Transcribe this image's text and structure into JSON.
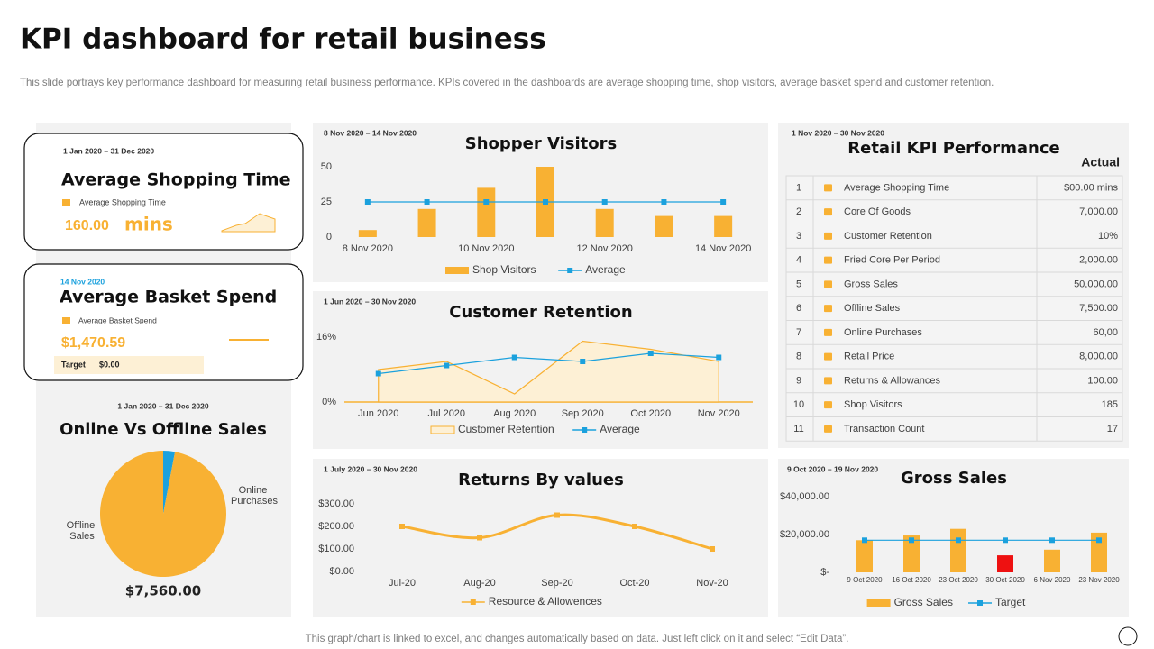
{
  "header": {
    "title": "KPI dashboard for retail business",
    "subtitle": "This slide portrays key performance dashboard for measuring retail business performance. KPIs covered in the dashboards are average shopping time, shop visitors, average basket spend and customer retention."
  },
  "cards": [
    {
      "date": "1 Jan 2020 – 31 Dec 2020",
      "title": "Average Shopping Time",
      "legend": "Average  Shopping Time",
      "value": "160.00",
      "unit": "mins"
    },
    {
      "date": "14 Nov 2020",
      "title": "Average Basket Spend",
      "legend": "Average  Basket Spend",
      "value": "$1,470.59",
      "target_label": "Target",
      "target_value": "$0.00"
    }
  ],
  "table": {
    "date": "1 Nov 2020 – 30 Nov 2020",
    "title": "Retail KPI Performance",
    "header": "Actual",
    "rows": [
      [
        1,
        "Average Shopping Time",
        "$00.00 mins"
      ],
      [
        2,
        "Core Of Goods",
        "7,000.00"
      ],
      [
        3,
        "Customer Retention",
        "10%"
      ],
      [
        4,
        "Fried Core Per Period",
        "2,000.00"
      ],
      [
        5,
        "Gross Sales",
        "50,000.00"
      ],
      [
        6,
        "Offline Sales",
        "7,500.00"
      ],
      [
        7,
        "Online Purchases",
        "60,00"
      ],
      [
        8,
        "Retail Price",
        "8,000.00"
      ],
      [
        9,
        "Returns & Allowances",
        "100.00"
      ],
      [
        10,
        "Shop Visitors",
        "185"
      ],
      [
        11,
        "Transaction Count",
        "17"
      ]
    ]
  },
  "chart_data": [
    {
      "type": "bar",
      "date": "8 Nov 2020 – 14 Nov 2020",
      "title": "Shopper Visitors",
      "categories": [
        "8 Nov 2020",
        null,
        "10 Nov 2020",
        null,
        "12 Nov 2020",
        null,
        "14 Nov 2020"
      ],
      "series": [
        {
          "name": "Shop Visitors",
          "type": "bar",
          "color": "#f8b133",
          "values": [
            5,
            20,
            35,
            50,
            20,
            15,
            15
          ]
        },
        {
          "name": "Average",
          "type": "line",
          "color": "#1ba1dd",
          "marker": "square",
          "values": [
            25,
            25,
            25,
            25,
            25,
            25,
            25
          ]
        }
      ],
      "ylim": [
        0,
        50
      ],
      "yticks": [
        0,
        25,
        50
      ]
    },
    {
      "type": "area",
      "date": "1 Jun 2020 – 30 Nov 2020",
      "title": "Customer Retention",
      "categories": [
        "Jun 2020",
        "Jul 2020",
        "Aug 2020",
        "Sep 2020",
        "Oct 2020",
        "Nov 2020"
      ],
      "series": [
        {
          "name": "Customer Retention",
          "type": "area",
          "color": "#f8b133",
          "fill_color": "#fdf0d5",
          "values": [
            8,
            10,
            2,
            15,
            13,
            10
          ]
        },
        {
          "name": "Average",
          "type": "line",
          "color": "#1ba1dd",
          "marker": "square",
          "values": [
            7,
            9,
            11,
            10,
            12,
            11
          ]
        }
      ],
      "ylim": [
        0,
        16
      ],
      "yticks": [
        {
          "value": 0,
          "label": "0%"
        },
        {
          "value": 16,
          "label": "16%"
        }
      ]
    },
    {
      "type": "line",
      "smooth": true,
      "date": "1 July 2020 – 30 Nov 2020",
      "title": "Returns By values",
      "categories": [
        "Jul-20",
        "Aug-20",
        "Sep-20",
        "Oct-20",
        "Nov-20"
      ],
      "series": [
        {
          "name": "Resource & Allowences",
          "type": "line",
          "color": "#f8b133",
          "marker": "square",
          "values": [
            200,
            150,
            250,
            200,
            100
          ]
        }
      ],
      "ylim": [
        0,
        300
      ],
      "yticks": [
        {
          "value": 0,
          "label": "$0.00"
        },
        {
          "value": 100,
          "label": "$100.00"
        },
        {
          "value": 200,
          "label": "$200.00"
        },
        {
          "value": 300,
          "label": "$300.00"
        }
      ]
    },
    {
      "type": "bar",
      "date": "9 Oct 2020 – 19 Nov 2020",
      "title": "Gross Sales",
      "categories": [
        "9 Oct 2020",
        "16 Oct 2020",
        "23 Oct 2020",
        "30 Oct 2020",
        "6 Nov 2020",
        "23 Nov 2020"
      ],
      "series": [
        {
          "name": "Gross Sales",
          "type": "bar",
          "color": "#f8b133",
          "colors": [
            "#f8b133",
            "#f8b133",
            "#f8b133",
            "#ee1111",
            "#f8b133",
            "#f8b133"
          ],
          "values": [
            17000,
            19500,
            23000,
            9000,
            12000,
            21000
          ]
        },
        {
          "name": "Target",
          "type": "line",
          "color": "#1ba1dd",
          "marker": "square",
          "values": [
            17000,
            17000,
            17000,
            17000,
            17000,
            17000
          ]
        }
      ],
      "ylim": [
        0,
        40000
      ],
      "yticks": [
        {
          "value": 0,
          "label": "$-"
        },
        {
          "value": 20000,
          "label": "$20,000.00"
        },
        {
          "value": 40000,
          "label": "$40,000.00"
        }
      ]
    },
    {
      "type": "pie",
      "date": "1 Jan 2020 – 31 Dec 2020",
      "title": "Online Vs Offline Sales",
      "categories": [
        "Online Purchases",
        "Offline Sales"
      ],
      "values": [
        3,
        97
      ],
      "colors": [
        "#1ba1dd",
        "#f8b133"
      ],
      "total": "$7,560.00"
    }
  ],
  "footer": "This graph/chart is linked to excel, and changes automatically based on data. Just left click on it and select “Edit Data”."
}
